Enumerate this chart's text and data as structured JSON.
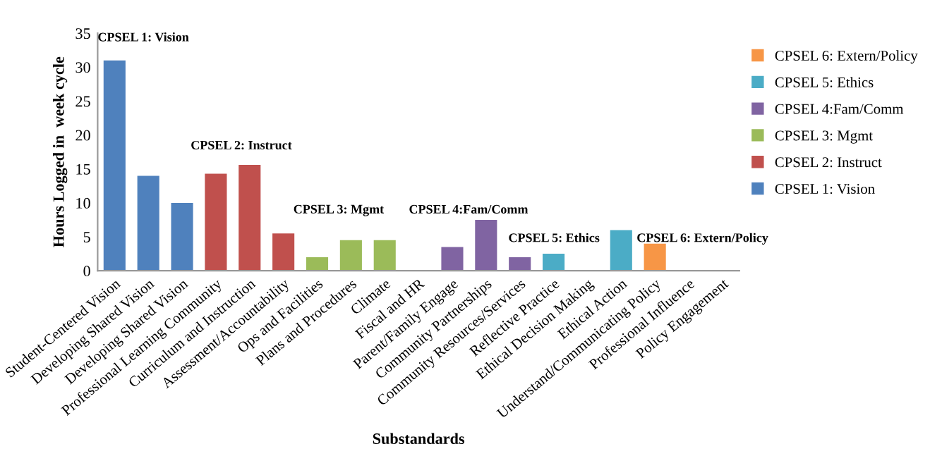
{
  "chart_data": {
    "type": "bar",
    "stacked": true,
    "xlabel": "Substandards",
    "ylabel": "Hours Logged in  week cycle",
    "categories": [
      "Student-Centered Vision",
      "Developing Shared Vision",
      "Developing Shared Vision",
      "Professional Learning Community",
      "Curriculum and Instruction",
      "Assessment/Accountability",
      "Ops and Facilities",
      "Plans and Procedures",
      "Climate",
      "Fiscal and HR",
      "Parent/Family Engage",
      "Community Partnerships",
      "Community Resources/Services",
      "Reflective Practice",
      "Ethical Decision Making",
      "Ethical Action",
      "Understand/Communicating Policy",
      "Professional Influence",
      "Policy Engagement"
    ],
    "series": [
      {
        "name": "CPSEL 1: Vision",
        "color": "#4f81bd",
        "values": [
          31,
          14,
          10,
          null,
          null,
          null,
          null,
          null,
          null,
          null,
          null,
          null,
          null,
          null,
          null,
          null,
          null,
          null,
          null
        ]
      },
      {
        "name": "CPSEL 2: Instruct",
        "color": "#c0504d",
        "values": [
          null,
          null,
          null,
          14.3,
          15.6,
          5.5,
          null,
          null,
          null,
          null,
          null,
          null,
          null,
          null,
          null,
          null,
          null,
          null,
          null
        ]
      },
      {
        "name": "CPSEL 3: Mgmt",
        "color": "#9bbb59",
        "values": [
          null,
          null,
          null,
          null,
          null,
          null,
          2,
          4.5,
          4.5,
          null,
          null,
          null,
          null,
          null,
          null,
          null,
          null,
          null,
          null
        ]
      },
      {
        "name": "CPSEL 4:Fam/Comm",
        "color": "#8064a2",
        "values": [
          null,
          null,
          null,
          null,
          null,
          null,
          null,
          null,
          null,
          null,
          3.5,
          7.5,
          2,
          null,
          null,
          null,
          null,
          null,
          null
        ]
      },
      {
        "name": "CPSEL 5: Ethics",
        "color": "#4bacc6",
        "values": [
          null,
          null,
          null,
          null,
          null,
          null,
          null,
          null,
          null,
          null,
          null,
          null,
          null,
          2.5,
          null,
          6,
          null,
          null,
          null
        ]
      },
      {
        "name": "CPSEL 6: Extern/Policy",
        "color": "#f79646",
        "values": [
          null,
          null,
          null,
          null,
          null,
          null,
          null,
          null,
          null,
          null,
          null,
          null,
          null,
          null,
          null,
          null,
          4,
          null,
          null
        ]
      }
    ],
    "ylim": [
      0,
      35
    ],
    "yticks": [
      0,
      5,
      10,
      15,
      20,
      25,
      30,
      35
    ],
    "grid": false,
    "legend": "right",
    "annotations": [
      "CPSEL 1: Vision",
      "CPSEL 2: Instruct",
      "CPSEL 3: Mgmt",
      "CPSEL 4:Fam/Comm",
      "CPSEL 5: Ethics",
      "CPSEL 6: Extern/Policy"
    ]
  }
}
